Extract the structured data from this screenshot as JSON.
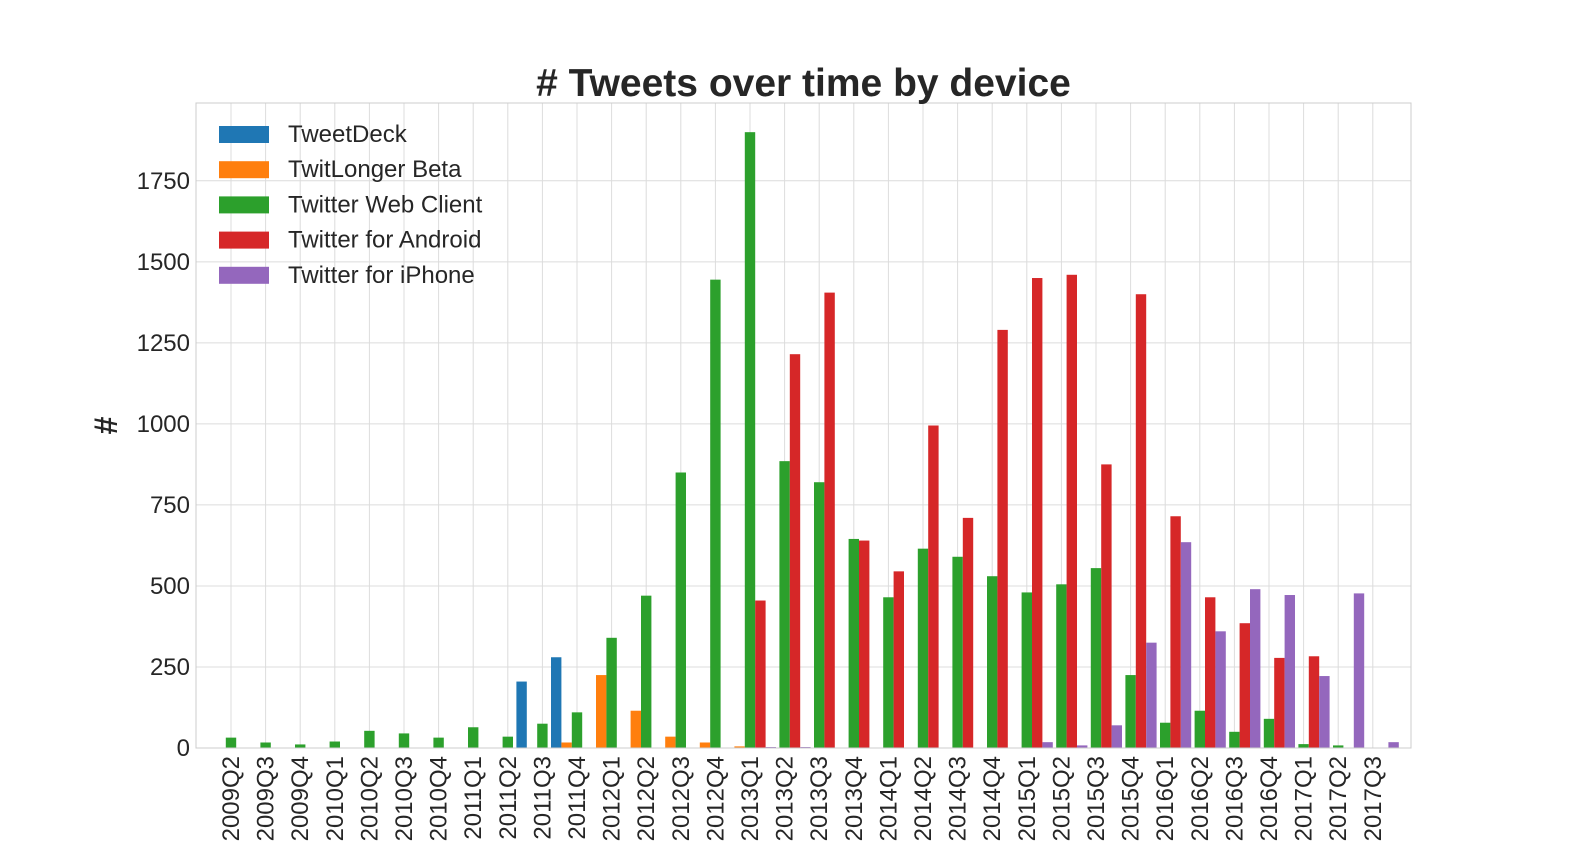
{
  "chart_data": {
    "type": "bar",
    "title": "# Tweets over time by device",
    "xlabel": "",
    "ylabel": "#",
    "ylim": [
      0,
      1990
    ],
    "yticks": [
      0,
      250,
      500,
      750,
      1000,
      1250,
      1500,
      1750
    ],
    "grid": true,
    "legend_position": "top-left",
    "categories": [
      "2009Q2",
      "2009Q3",
      "2009Q4",
      "2010Q1",
      "2010Q2",
      "2010Q3",
      "2010Q4",
      "2011Q1",
      "2011Q2",
      "2011Q3",
      "2011Q4",
      "2012Q1",
      "2012Q2",
      "2012Q3",
      "2012Q4",
      "2013Q1",
      "2013Q2",
      "2013Q3",
      "2013Q4",
      "2014Q1",
      "2014Q2",
      "2014Q3",
      "2014Q4",
      "2015Q1",
      "2015Q2",
      "2015Q3",
      "2015Q4",
      "2016Q1",
      "2016Q2",
      "2016Q3",
      "2016Q4",
      "2017Q1",
      "2017Q2",
      "2017Q3"
    ],
    "series": [
      {
        "name": "TweetDeck",
        "color": "#1f77b4",
        "values": [
          0,
          0,
          0,
          0,
          0,
          0,
          0,
          0,
          0,
          205,
          280,
          0,
          0,
          0,
          0,
          0,
          0,
          0,
          0,
          0,
          0,
          0,
          0,
          0,
          0,
          0,
          0,
          0,
          0,
          0,
          0,
          0,
          0,
          0
        ]
      },
      {
        "name": "TwitLonger Beta",
        "color": "#ff7f0e",
        "values": [
          0,
          0,
          0,
          0,
          0,
          0,
          0,
          0,
          0,
          0,
          17,
          225,
          115,
          35,
          17,
          5,
          0,
          0,
          0,
          0,
          0,
          0,
          0,
          0,
          0,
          0,
          0,
          0,
          0,
          0,
          0,
          0,
          0,
          0
        ]
      },
      {
        "name": "Twitter Web Client",
        "color": "#2ca02c",
        "values": [
          32,
          17,
          11,
          20,
          53,
          45,
          32,
          64,
          35,
          75,
          110,
          340,
          470,
          850,
          1445,
          1900,
          885,
          820,
          645,
          465,
          615,
          590,
          530,
          480,
          505,
          555,
          225,
          78,
          115,
          50,
          90,
          12,
          8,
          0
        ]
      },
      {
        "name": "Twitter for Android",
        "color": "#d62728",
        "values": [
          0,
          0,
          0,
          0,
          0,
          0,
          0,
          0,
          0,
          0,
          0,
          0,
          0,
          0,
          0,
          455,
          1215,
          1405,
          640,
          545,
          995,
          710,
          1290,
          1450,
          1460,
          875,
          1400,
          715,
          465,
          385,
          278,
          283,
          0,
          0
        ]
      },
      {
        "name": "Twitter for iPhone",
        "color": "#9467bd",
        "values": [
          0,
          0,
          0,
          0,
          0,
          0,
          0,
          0,
          0,
          0,
          0,
          0,
          0,
          0,
          0,
          3,
          3,
          0,
          0,
          0,
          0,
          0,
          0,
          18,
          8,
          70,
          325,
          635,
          360,
          490,
          472,
          222,
          477,
          18
        ]
      }
    ]
  }
}
